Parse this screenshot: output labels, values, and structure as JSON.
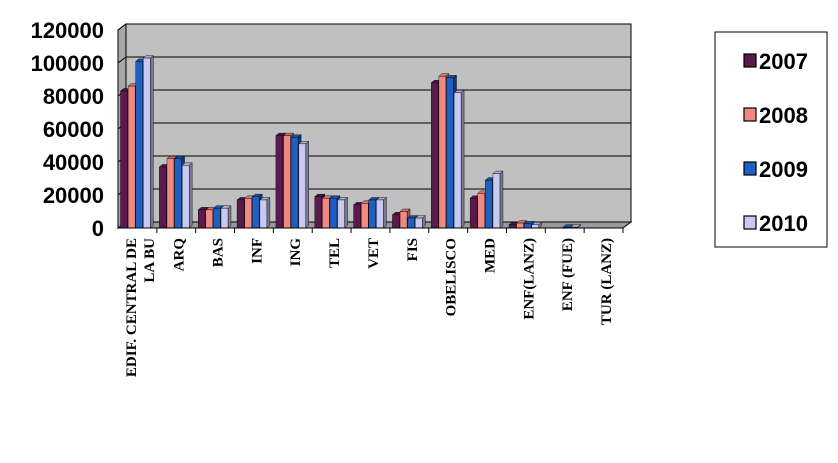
{
  "chart_data": {
    "type": "bar",
    "categories": [
      "EDIF. CENTRAL DE LA BU",
      "ARQ",
      "BAS",
      "INF",
      "ING",
      "TEL",
      "VET",
      "FIS",
      "OBELISCO",
      "MED",
      "ENF(LANZ)",
      "ENF (FUE)",
      "TUR (LANZ)"
    ],
    "category_lines": [
      [
        "EDIF. CENTRAL DE",
        "LA BU"
      ],
      [
        "ARQ"
      ],
      [
        "BAS"
      ],
      [
        "INF"
      ],
      [
        "ING"
      ],
      [
        "TEL"
      ],
      [
        "VET"
      ],
      [
        "FIS"
      ],
      [
        "OBELISCO"
      ],
      [
        "MED"
      ],
      [
        "ENF(LANZ)"
      ],
      [
        "ENF (FUE)"
      ],
      [
        "TUR (LANZ)"
      ]
    ],
    "series": [
      {
        "name": "2007",
        "color": "#5b1a4e",
        "values": [
          83000,
          37000,
          11000,
          17000,
          56000,
          19000,
          14000,
          8000,
          88000,
          18000,
          2000,
          0,
          0
        ]
      },
      {
        "name": "2008",
        "color": "#f08a80",
        "values": [
          86000,
          42000,
          11000,
          18000,
          56000,
          18000,
          15000,
          10000,
          92000,
          21000,
          3000,
          0,
          0
        ]
      },
      {
        "name": "2009",
        "color": "#1f5fc0",
        "values": [
          101000,
          42000,
          12000,
          19000,
          55000,
          18000,
          17000,
          6000,
          91000,
          29000,
          2500,
          500,
          0
        ]
      },
      {
        "name": "2010",
        "color": "#c8c8f0",
        "values": [
          103000,
          38000,
          12000,
          17000,
          51000,
          17000,
          17000,
          6000,
          82000,
          33000,
          2000,
          500,
          0
        ]
      }
    ],
    "y_ticks": [
      "0",
      "20000",
      "40000",
      "60000",
      "80000",
      "100000",
      "120000"
    ],
    "ylim": [
      0,
      120000
    ],
    "grid": true,
    "plot_background": "#c0c0c0",
    "legend_position": "right"
  }
}
